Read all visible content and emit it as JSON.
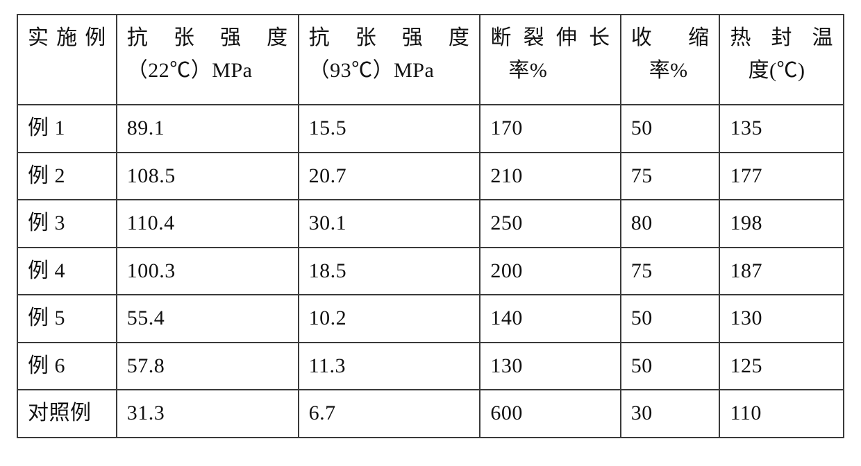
{
  "table": {
    "type": "table",
    "border_color": "#3a3a3a",
    "background_color": "#ffffff",
    "text_color": "#111111",
    "font_family": "SimSun / serif",
    "cell_fontsize_pt": 22,
    "header_line_height": 1.55,
    "column_widths_pct": [
      12,
      22,
      22,
      17,
      12,
      15
    ],
    "columns": [
      {
        "line1": "实施例",
        "line2": ""
      },
      {
        "line1": "抗张强度",
        "line2": "（22℃）MPa"
      },
      {
        "line1": "抗张强度",
        "line2": "（93℃）MPa"
      },
      {
        "line1": "断裂伸长",
        "line2": "率%"
      },
      {
        "line1": "收缩",
        "line2": "率%"
      },
      {
        "line1": "热封温",
        "line2": "度(℃)"
      }
    ],
    "rows": [
      [
        "例 1",
        "89.1",
        "15.5",
        "170",
        "50",
        "135"
      ],
      [
        "例 2",
        "108.5",
        "20.7",
        "210",
        "75",
        "177"
      ],
      [
        "例 3",
        "110.4",
        "30.1",
        "250",
        "80",
        "198"
      ],
      [
        "例 4",
        "100.3",
        "18.5",
        "200",
        "75",
        "187"
      ],
      [
        "例 5",
        "55.4",
        "10.2",
        "140",
        "50",
        "130"
      ],
      [
        "例 6",
        "57.8",
        "11.3",
        "130",
        "50",
        "125"
      ],
      [
        "对照例",
        "31.3",
        "6.7",
        "600",
        "30",
        "110"
      ]
    ]
  }
}
